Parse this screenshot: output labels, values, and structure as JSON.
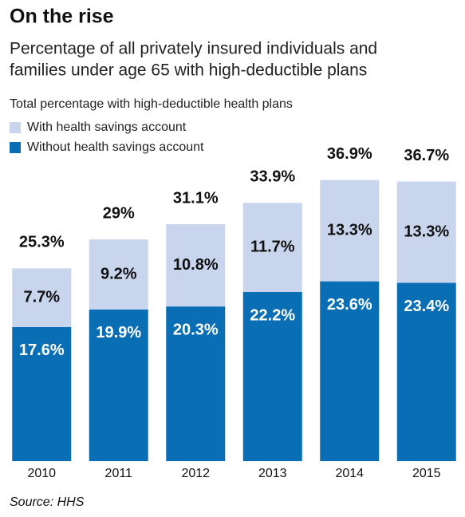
{
  "chart_data": {
    "type": "stacked_bar",
    "title": "On the rise",
    "subtitle": [
      "Percentage of all privately insured individuals and",
      "families under age 65 with high-deductible plans"
    ],
    "legend_title": "Total percentage with high-deductible health plans",
    "categories": [
      "2010",
      "2011",
      "2012",
      "2013",
      "2014",
      "2015"
    ],
    "series": [
      {
        "name": "Without health savings account",
        "color": "#0a6eb4",
        "values": [
          17.6,
          19.9,
          20.3,
          22.2,
          23.6,
          23.4
        ],
        "value_labels": [
          "17.6%",
          "19.9%",
          "20.3%",
          "22.2%",
          "23.6%",
          "23.4%"
        ]
      },
      {
        "name": "With health savings account",
        "color": "#c8d5ec",
        "values": [
          7.7,
          9.2,
          10.8,
          11.7,
          13.3,
          13.3
        ],
        "value_labels": [
          "7.7%",
          "9.2%",
          "10.8%",
          "11.7%",
          "13.3%",
          "13.3%"
        ]
      }
    ],
    "totals": [
      25.3,
      29,
      31.1,
      33.9,
      36.9,
      36.7
    ],
    "total_labels": [
      "25.3%",
      "29%",
      "31.1%",
      "33.9%",
      "36.9%",
      "36.7%"
    ],
    "ylim": [
      0,
      40
    ],
    "source": "Source: HHS"
  }
}
